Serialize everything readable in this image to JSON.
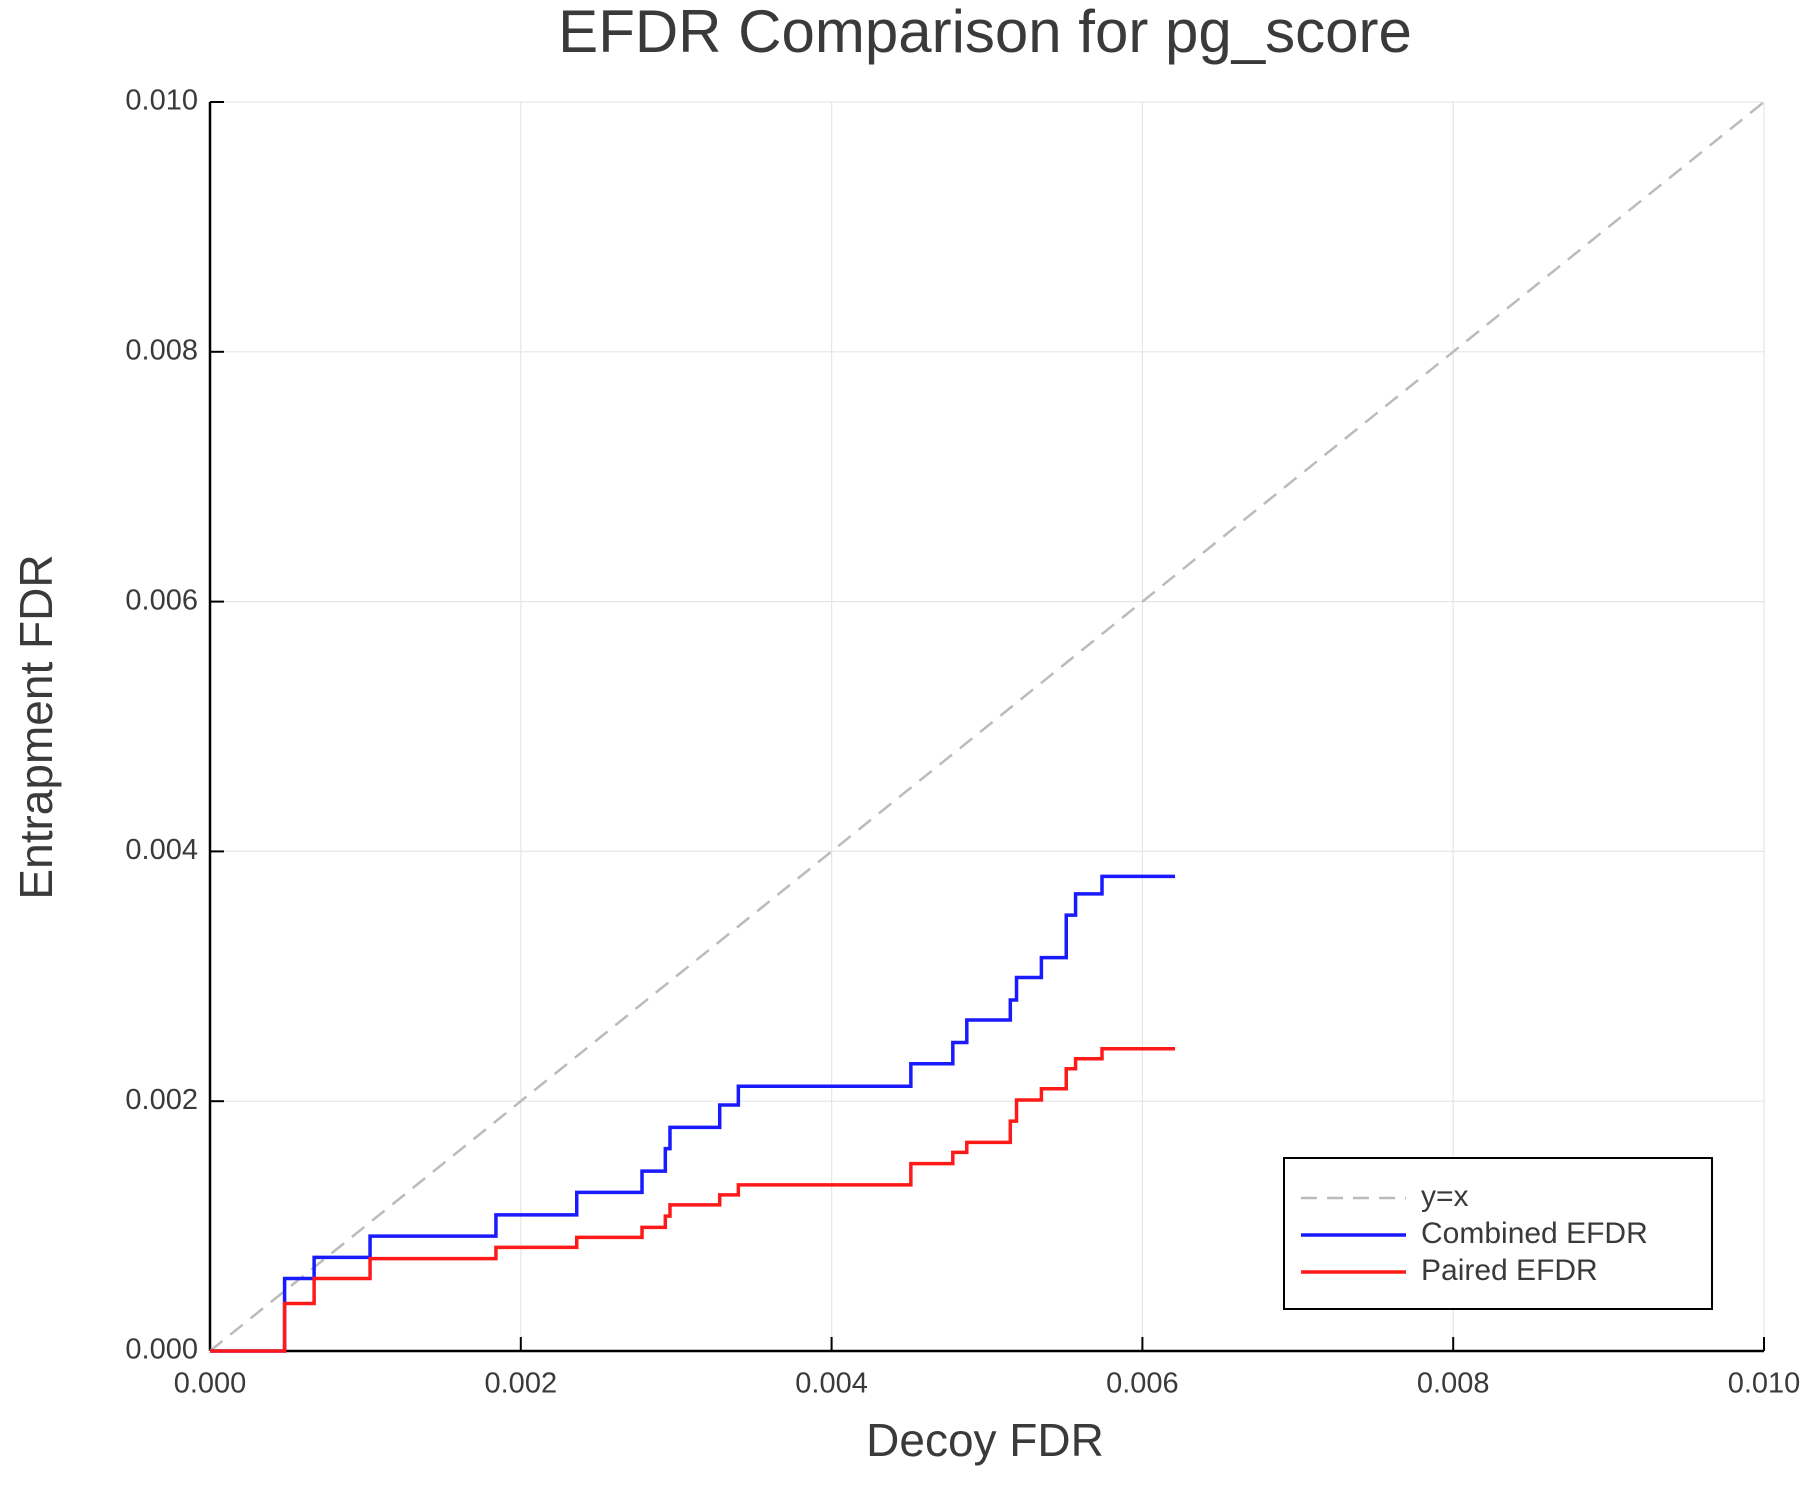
{
  "chart_data": {
    "type": "step",
    "title": "EFDR Comparison for pg_score",
    "xlabel": "Decoy FDR",
    "ylabel": "Entrapment FDR",
    "xlim": [
      0,
      0.01
    ],
    "ylim": [
      0,
      0.01
    ],
    "xticks": [
      {
        "value": 0,
        "label": "0.000"
      },
      {
        "value": 0.002,
        "label": "0.002"
      },
      {
        "value": 0.004,
        "label": "0.004"
      },
      {
        "value": 0.006,
        "label": "0.006"
      },
      {
        "value": 0.008,
        "label": "0.008"
      },
      {
        "value": 0.01,
        "label": "0.010"
      }
    ],
    "yticks": [
      {
        "value": 0,
        "label": "0.000"
      },
      {
        "value": 0.002,
        "label": "0.002"
      },
      {
        "value": 0.004,
        "label": "0.004"
      },
      {
        "value": 0.006,
        "label": "0.006"
      },
      {
        "value": 0.008,
        "label": "0.008"
      },
      {
        "value": 0.01,
        "label": "0.010"
      }
    ],
    "grid": true,
    "legend": "lower right",
    "series": [
      {
        "name": "y=x",
        "color": "#bbbbbb",
        "dashed": true,
        "x": [
          0,
          0.01
        ],
        "values": [
          0,
          0.01
        ]
      },
      {
        "name": "Combined EFDR",
        "color": "#1a1aff",
        "x": [
          0,
          0.00048,
          0.00067,
          0.00103,
          0.00184,
          0.00236,
          0.00278,
          0.00293,
          0.00296,
          0.00328,
          0.0034,
          0.00451,
          0.00478,
          0.00487,
          0.00515,
          0.00519,
          0.00535,
          0.00551,
          0.00557,
          0.00574,
          0.00621
        ],
        "values": [
          0,
          0.00058,
          0.00075,
          0.00092,
          0.00109,
          0.00127,
          0.00144,
          0.00162,
          0.00179,
          0.00197,
          0.00212,
          0.0023,
          0.00247,
          0.00265,
          0.00281,
          0.00299,
          0.00315,
          0.00349,
          0.00366,
          0.0038,
          0.0038
        ]
      },
      {
        "name": "Paired EFDR",
        "color": "#ff1a1a",
        "x": [
          0,
          0.00048,
          0.00067,
          0.00103,
          0.00184,
          0.00236,
          0.00278,
          0.00293,
          0.00296,
          0.00328,
          0.0034,
          0.00451,
          0.00478,
          0.00487,
          0.00515,
          0.00519,
          0.00535,
          0.00551,
          0.00557,
          0.00574,
          0.00621
        ],
        "values": [
          0,
          0.00038,
          0.00058,
          0.00074,
          0.00083,
          0.00091,
          0.00099,
          0.00108,
          0.00117,
          0.00125,
          0.00133,
          0.0015,
          0.00159,
          0.00167,
          0.00184,
          0.00201,
          0.0021,
          0.00226,
          0.00234,
          0.00242,
          0.00242
        ]
      }
    ]
  }
}
